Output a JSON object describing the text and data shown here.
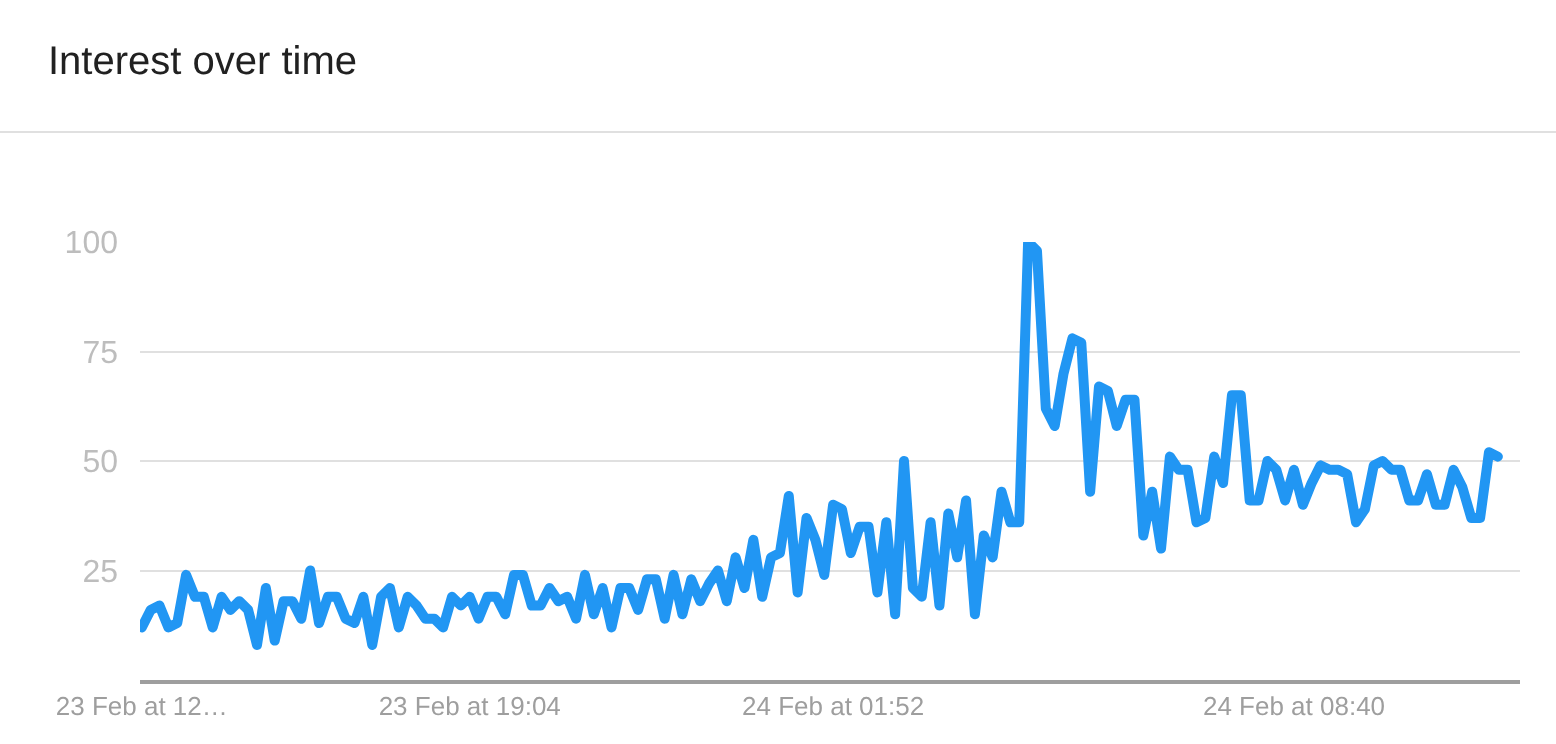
{
  "chart_data": {
    "type": "line",
    "title": "Interest over time",
    "series": [
      {
        "color": "#2196f3",
        "values": [
          12,
          16,
          17,
          12,
          13,
          24,
          19,
          19,
          12,
          19,
          16,
          18,
          16,
          8,
          21,
          9,
          18,
          18,
          14,
          25,
          13,
          19,
          19,
          14,
          13,
          19,
          8,
          19,
          21,
          12,
          19,
          17,
          14,
          14,
          12,
          19,
          17,
          19,
          14,
          19,
          19,
          15,
          24,
          24,
          17,
          17,
          21,
          18,
          19,
          14,
          24,
          15,
          21,
          12,
          21,
          21,
          16,
          23,
          23,
          14,
          24,
          15,
          23,
          18,
          22,
          25,
          18,
          28,
          21,
          32,
          19,
          28,
          29,
          42,
          20,
          37,
          32,
          24,
          40,
          39,
          29,
          35,
          35,
          20,
          36,
          15,
          50,
          21,
          19,
          36,
          17,
          38,
          28,
          41,
          15,
          33,
          28,
          43,
          36,
          36,
          100,
          98,
          62,
          58,
          70,
          78,
          77,
          43,
          67,
          66,
          58,
          64,
          64,
          33,
          43,
          30,
          51,
          48,
          48,
          36,
          37,
          51,
          45,
          65,
          65,
          41,
          41,
          50,
          48,
          41,
          48,
          40,
          45,
          49,
          48,
          48,
          47,
          36,
          39,
          49,
          50,
          48,
          48,
          41,
          41,
          47,
          40,
          40,
          48,
          44,
          37,
          37,
          52,
          51
        ]
      }
    ],
    "categories": [
      "23 Feb at 12…",
      null,
      null,
      null,
      null,
      null,
      null,
      null,
      null,
      null,
      null,
      null,
      null,
      null,
      null,
      null,
      null,
      null,
      null,
      null,
      null,
      null,
      null,
      null,
      null,
      null,
      null,
      null,
      null,
      null,
      null,
      null,
      null,
      null,
      null,
      null,
      null,
      "23 Feb at 19:04",
      null,
      null,
      null,
      null,
      null,
      null,
      null,
      null,
      null,
      null,
      null,
      null,
      null,
      null,
      null,
      null,
      null,
      null,
      null,
      null,
      null,
      null,
      null,
      null,
      null,
      null,
      null,
      null,
      null,
      null,
      null,
      null,
      null,
      null,
      null,
      null,
      null,
      null,
      null,
      null,
      "24 Feb at 01:52",
      null,
      null,
      null,
      null,
      null,
      null,
      null,
      null,
      null,
      null,
      null,
      null,
      null,
      null,
      null,
      null,
      null,
      null,
      null,
      null,
      null,
      null,
      null,
      null,
      null,
      null,
      null,
      null,
      null,
      null,
      null,
      null,
      null,
      null,
      null,
      null,
      null,
      null,
      null,
      null,
      null,
      null,
      null,
      null,
      null,
      null,
      null,
      null,
      null,
      null,
      null,
      "24 Feb at 08:40",
      null,
      null,
      null,
      null,
      null,
      null,
      null,
      null,
      null,
      null,
      null,
      null,
      null,
      null,
      null,
      null,
      null,
      null,
      null,
      null,
      null,
      null,
      null
    ],
    "ylim": [
      0,
      100
    ],
    "yticks": [
      25,
      50,
      75,
      100
    ],
    "grid": "y",
    "marker": "none",
    "line_style": "solid"
  }
}
